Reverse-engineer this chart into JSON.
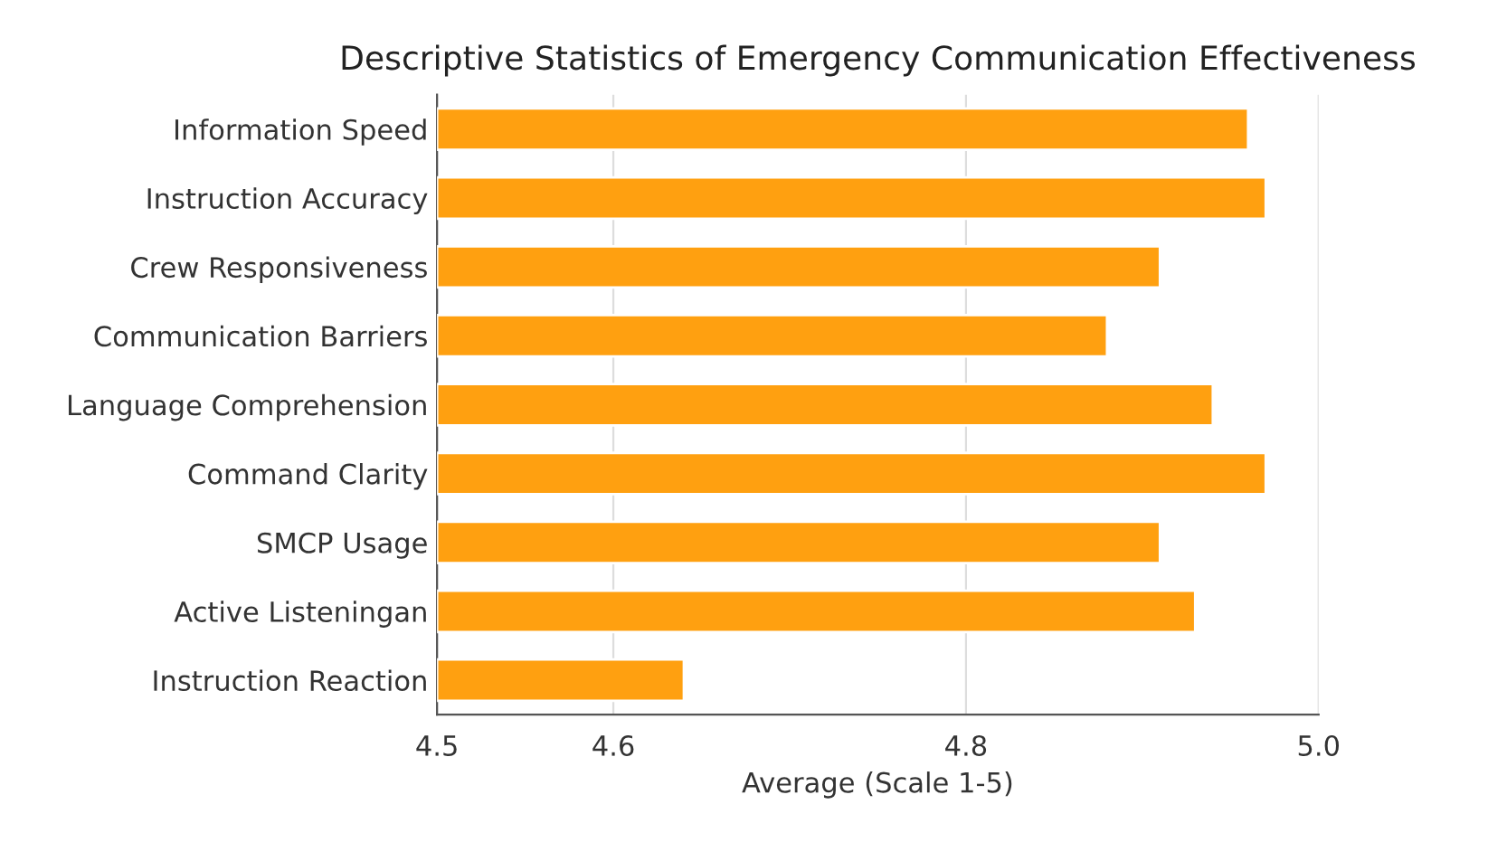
{
  "chart_data": {
    "type": "bar",
    "orientation": "horizontal",
    "title": "Descriptive Statistics of Emergency Communication Effectiveness",
    "xlabel": "Average (Scale 1-5)",
    "categories": [
      "Information Speed",
      "Instruction Accuracy",
      "Crew Responsiveness",
      "Communication Barriers",
      "Language Comprehension",
      "Command Clarity",
      "SMCP Usage",
      "Active Listeningan",
      "Instruction Reaction"
    ],
    "values": [
      4.96,
      4.97,
      4.91,
      4.88,
      4.94,
      4.97,
      4.91,
      4.93,
      4.64
    ],
    "color": "#ffa010",
    "xlim": [
      4.5,
      5.0
    ],
    "xticks": [
      4.5,
      4.6,
      4.8,
      {
        "value": 5.0,
        "label": "5.0"
      }
    ],
    "grid": "x"
  }
}
